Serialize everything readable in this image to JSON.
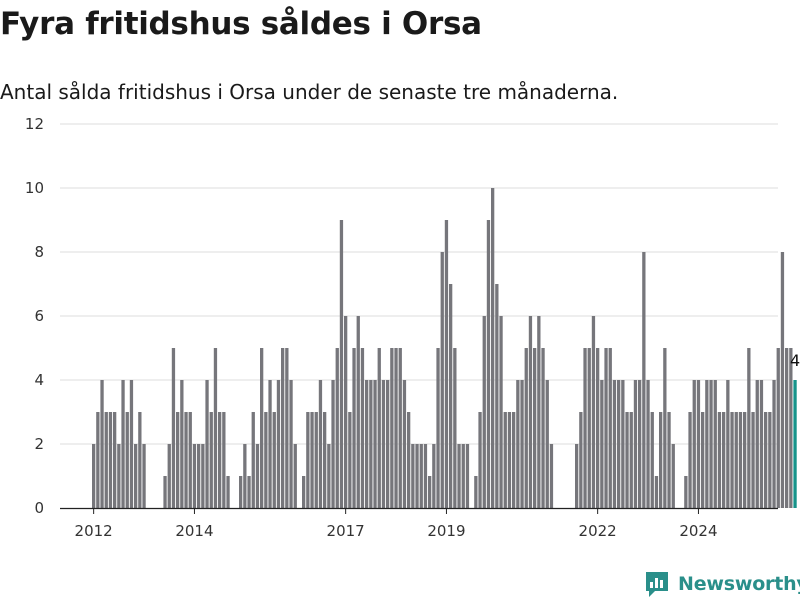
{
  "title": "Fyra fritidshus såldes i Orsa",
  "subtitle": "Antal sålda fritidshus i Orsa under de senaste tre månaderna.",
  "brand": "Newsworthy",
  "colors": {
    "bar": "#76767b",
    "highlight": "#17938a",
    "grid": "#dedede",
    "axis": "#222222",
    "brand": "#2a8f8a"
  },
  "chart_data": {
    "type": "bar",
    "title": "Fyra fritidshus såldes i Orsa",
    "subtitle": "Antal sålda fritidshus i Orsa under de senaste tre månaderna.",
    "x_start": "2012-01",
    "x_unit": "month",
    "x_tick_labels": [
      "2012",
      "2014",
      "2017",
      "2019",
      "2022",
      "2024"
    ],
    "x_ticks": [
      "2012-01",
      "2014-01",
      "2017-01",
      "2019-01",
      "2022-01",
      "2024-01"
    ],
    "yticks": [
      0,
      2,
      4,
      6,
      8,
      10,
      12
    ],
    "ylim": [
      0,
      12
    ],
    "grid": true,
    "values": [
      2,
      3,
      4,
      3,
      3,
      3,
      2,
      4,
      3,
      4,
      2,
      3,
      2,
      null,
      null,
      null,
      null,
      1,
      2,
      5,
      3,
      4,
      3,
      3,
      2,
      2,
      2,
      4,
      3,
      5,
      3,
      3,
      1,
      null,
      null,
      1,
      2,
      1,
      3,
      2,
      5,
      3,
      4,
      3,
      4,
      5,
      5,
      4,
      2,
      null,
      1,
      3,
      3,
      3,
      4,
      3,
      2,
      4,
      5,
      9,
      6,
      3,
      5,
      6,
      5,
      4,
      4,
      4,
      5,
      4,
      4,
      5,
      5,
      5,
      4,
      3,
      2,
      2,
      2,
      2,
      1,
      2,
      5,
      8,
      9,
      7,
      5,
      2,
      2,
      2,
      null,
      1,
      3,
      6,
      9,
      10,
      7,
      6,
      3,
      3,
      3,
      4,
      4,
      5,
      6,
      5,
      6,
      5,
      4,
      2,
      null,
      null,
      null,
      null,
      null,
      2,
      3,
      5,
      5,
      6,
      5,
      4,
      5,
      5,
      4,
      4,
      4,
      3,
      3,
      4,
      4,
      8,
      4,
      3,
      1,
      3,
      5,
      3,
      2,
      null,
      null,
      1,
      3,
      4,
      4,
      3,
      4,
      4,
      4,
      3,
      3,
      4,
      3,
      3,
      3,
      3,
      5,
      3,
      4,
      4,
      3,
      3,
      4,
      5,
      8,
      5,
      5,
      4
    ],
    "highlight_last": true,
    "last_value_label": "4"
  }
}
